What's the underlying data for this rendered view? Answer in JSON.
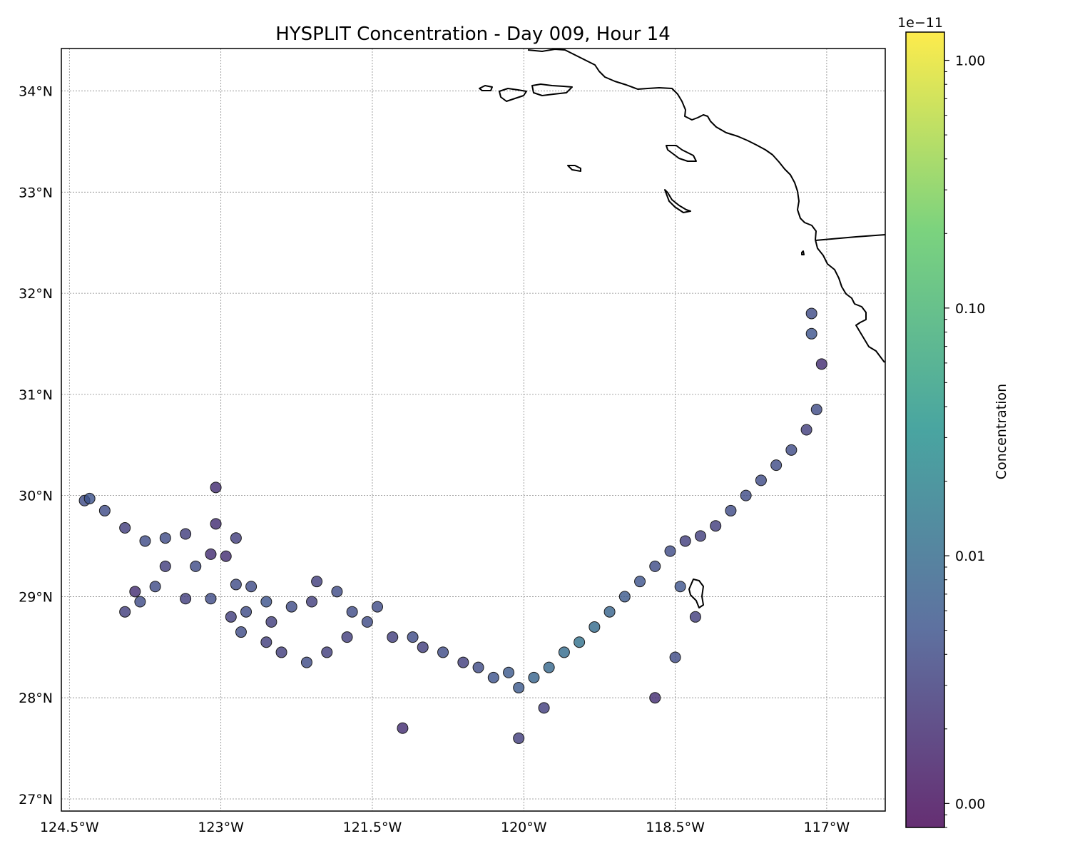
{
  "title": "HYSPLIT Concentration - Day 009, Hour 14",
  "colors": {
    "background": "#ffffff",
    "coastline": "#000000",
    "grid": "#888888",
    "colormap": [
      "#440154",
      "#3b528b",
      "#21918c",
      "#5ec962",
      "#fde725"
    ],
    "point_alpha": 0.8
  },
  "colorbar": {
    "label": "Concentration",
    "exponent_label": "1e−11",
    "scale": "log",
    "tick_labels": [
      "1.00",
      "0.10",
      "0.01",
      "0.00"
    ],
    "tick_values": [
      1.0,
      0.1,
      0.01,
      0.001
    ],
    "range": [
      0.0008,
      1.3
    ]
  },
  "axes": {
    "x_tick_labels": [
      "124.5°W",
      "123°W",
      "121.5°W",
      "120°W",
      "118.5°W",
      "117°W"
    ],
    "x_tick_values": [
      -124.5,
      -123.0,
      -121.5,
      -120.0,
      -118.5,
      -117.0
    ],
    "y_tick_labels": [
      "34°N",
      "33°N",
      "32°N",
      "31°N",
      "30°N",
      "29°N",
      "28°N",
      "27°N"
    ],
    "y_tick_values": [
      34,
      33,
      32,
      31,
      30,
      29,
      28,
      27
    ],
    "lon_range": [
      -124.58,
      -116.42
    ],
    "lat_range": [
      26.88,
      34.42
    ],
    "grid": true
  },
  "chart_data": {
    "type": "scatter",
    "title": "HYSPLIT Concentration - Day 009, Hour 14",
    "xlabel": "",
    "ylabel": "",
    "color_label": "Concentration",
    "points": [
      [
        -124.35,
        29.95,
        0.004
      ],
      [
        -124.3,
        29.97,
        0.005
      ],
      [
        -124.15,
        29.85,
        0.004
      ],
      [
        -123.95,
        29.68,
        0.003
      ],
      [
        -123.75,
        29.55,
        0.004
      ],
      [
        -123.55,
        29.58,
        0.004
      ],
      [
        -123.35,
        29.62,
        0.003
      ],
      [
        -123.05,
        30.08,
        0.002
      ],
      [
        -123.05,
        29.72,
        0.002
      ],
      [
        -122.85,
        29.58,
        0.003
      ],
      [
        -123.1,
        29.42,
        0.002
      ],
      [
        -122.95,
        29.4,
        0.002
      ],
      [
        -123.25,
        29.3,
        0.004
      ],
      [
        -123.55,
        29.3,
        0.003
      ],
      [
        -123.65,
        29.1,
        0.004
      ],
      [
        -123.85,
        29.05,
        0.002
      ],
      [
        -123.8,
        28.95,
        0.004
      ],
      [
        -123.95,
        28.85,
        0.003
      ],
      [
        -123.35,
        28.98,
        0.003
      ],
      [
        -123.1,
        28.98,
        0.004
      ],
      [
        -122.85,
        29.12,
        0.004
      ],
      [
        -122.7,
        29.1,
        0.004
      ],
      [
        -122.55,
        28.95,
        0.005
      ],
      [
        -122.75,
        28.85,
        0.004
      ],
      [
        -122.9,
        28.8,
        0.003
      ],
      [
        -122.5,
        28.75,
        0.003
      ],
      [
        -122.3,
        28.9,
        0.004
      ],
      [
        -122.05,
        29.15,
        0.003
      ],
      [
        -122.1,
        28.95,
        0.003
      ],
      [
        -121.85,
        29.05,
        0.004
      ],
      [
        -121.7,
        28.85,
        0.004
      ],
      [
        -121.75,
        28.6,
        0.003
      ],
      [
        -121.95,
        28.45,
        0.003
      ],
      [
        -122.15,
        28.35,
        0.004
      ],
      [
        -122.4,
        28.45,
        0.003
      ],
      [
        -122.55,
        28.55,
        0.003
      ],
      [
        -122.8,
        28.65,
        0.004
      ],
      [
        -121.55,
        28.75,
        0.004
      ],
      [
        -121.45,
        28.9,
        0.004
      ],
      [
        -121.3,
        28.6,
        0.003
      ],
      [
        -121.1,
        28.6,
        0.004
      ],
      [
        -121.0,
        28.5,
        0.003
      ],
      [
        -120.8,
        28.45,
        0.004
      ],
      [
        -120.6,
        28.35,
        0.003
      ],
      [
        -120.45,
        28.3,
        0.004
      ],
      [
        -120.3,
        28.2,
        0.005
      ],
      [
        -120.15,
        28.25,
        0.006
      ],
      [
        -120.05,
        28.1,
        0.006
      ],
      [
        -119.9,
        28.2,
        0.008
      ],
      [
        -119.75,
        28.3,
        0.009
      ],
      [
        -119.6,
        28.45,
        0.01
      ],
      [
        -119.45,
        28.55,
        0.012
      ],
      [
        -119.3,
        28.7,
        0.01
      ],
      [
        -119.15,
        28.85,
        0.008
      ],
      [
        -119.0,
        29.0,
        0.006
      ],
      [
        -118.85,
        29.15,
        0.005
      ],
      [
        -118.7,
        29.3,
        0.004
      ],
      [
        -118.55,
        29.45,
        0.004
      ],
      [
        -118.4,
        29.55,
        0.003
      ],
      [
        -118.25,
        29.6,
        0.003
      ],
      [
        -118.1,
        29.7,
        0.003
      ],
      [
        -117.95,
        29.85,
        0.004
      ],
      [
        -117.8,
        30.0,
        0.004
      ],
      [
        -117.65,
        30.15,
        0.004
      ],
      [
        -117.5,
        30.3,
        0.004
      ],
      [
        -117.35,
        30.45,
        0.004
      ],
      [
        -117.2,
        30.65,
        0.003
      ],
      [
        -117.1,
        30.85,
        0.004
      ],
      [
        -117.05,
        31.3,
        0.002
      ],
      [
        -117.15,
        31.6,
        0.005
      ],
      [
        -117.15,
        31.8,
        0.004
      ],
      [
        -120.05,
        27.6,
        0.003
      ],
      [
        -121.2,
        27.7,
        0.002
      ],
      [
        -119.8,
        27.9,
        0.003
      ],
      [
        -118.7,
        28.0,
        0.002
      ],
      [
        -118.5,
        28.4,
        0.004
      ],
      [
        -118.3,
        28.8,
        0.003
      ],
      [
        -118.45,
        29.1,
        0.005
      ]
    ]
  }
}
